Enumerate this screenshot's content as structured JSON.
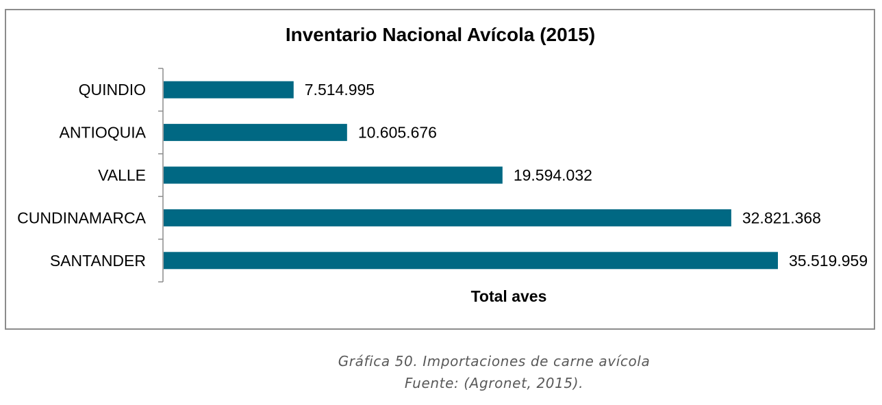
{
  "chart_data": {
    "type": "bar",
    "orientation": "horizontal",
    "title": "Inventario Nacional Avícola (2015)",
    "xlabel": "Total aves",
    "ylabel": "",
    "categories": [
      "QUINDIO",
      "ANTIOQUIA",
      "VALLE",
      "CUNDINAMARCA",
      "SANTANDER"
    ],
    "values": [
      7514995,
      10605676,
      19594032,
      32821368,
      35519959
    ],
    "value_labels": [
      "7.514.995",
      "10.605.676",
      "19.594.032",
      "32.821.368",
      "35.519.959"
    ],
    "bar_color": "#006883",
    "grid": false,
    "legend": "none"
  },
  "caption": {
    "line1": "Gráfica 50. Importaciones de carne avícola",
    "line2": "Fuente: (Agronet, 2015)."
  }
}
